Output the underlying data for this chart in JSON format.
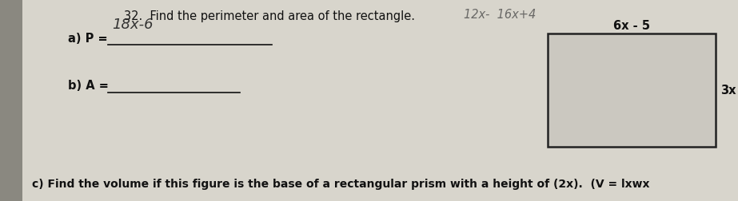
{
  "bg_color": "#b8b5ac",
  "paper_color": "#d8d5cc",
  "title": "32.  Find the perimeter and area of the rectangle.",
  "handwritten_answer": "18x-6",
  "part_a_label": "a) P = ",
  "part_b_label": "b) A = ",
  "part_c_text": "c) Find the volume if this figure is the base of a rectangular prism with a height of (2x).  (V = lxwx",
  "rect_label_top": "6x - 5",
  "rect_label_right": "3x",
  "extra_text_top": "12x-  16x+4",
  "line_color": "#111111",
  "text_color": "#111111",
  "rect_edge_color": "#222222",
  "rect_face_color": "#cbc8c0"
}
